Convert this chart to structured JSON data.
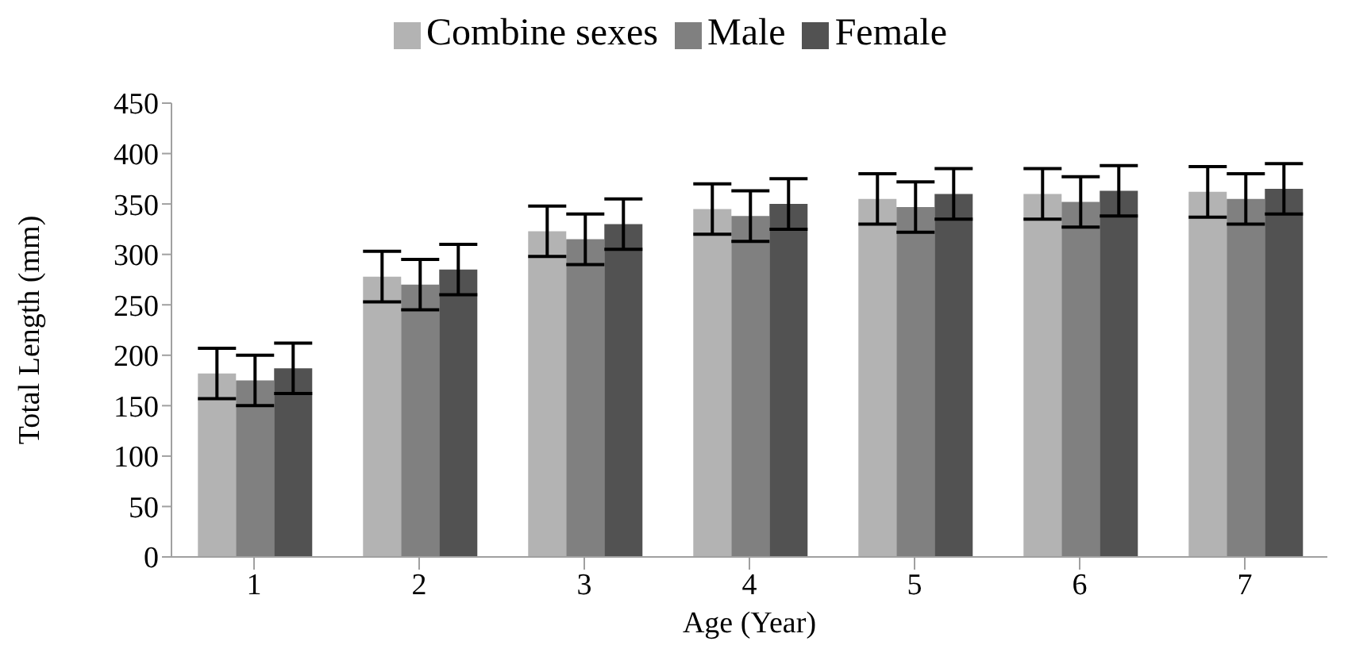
{
  "chart_data": {
    "type": "bar",
    "xlabel": "Age (Year)",
    "ylabel": "Total Length (mm)",
    "categories": [
      "1",
      "2",
      "3",
      "4",
      "5",
      "6",
      "7"
    ],
    "series": [
      {
        "name": "Combine sexes",
        "color": "#b3b3b3",
        "values": [
          182,
          278,
          323,
          345,
          355,
          360,
          362
        ],
        "errors": [
          25,
          25,
          25,
          25,
          25,
          25,
          25
        ]
      },
      {
        "name": "Male",
        "color": "#808080",
        "values": [
          175,
          270,
          315,
          338,
          347,
          352,
          355
        ],
        "errors": [
          25,
          25,
          25,
          25,
          25,
          25,
          25
        ]
      },
      {
        "name": "Female",
        "color": "#525252",
        "values": [
          187,
          285,
          330,
          350,
          360,
          363,
          365
        ],
        "errors": [
          25,
          25,
          25,
          25,
          25,
          25,
          25
        ]
      }
    ],
    "ylim": [
      0,
      450
    ],
    "yticks": [
      0,
      50,
      100,
      150,
      200,
      250,
      300,
      350,
      400,
      450
    ],
    "legend": "top"
  }
}
